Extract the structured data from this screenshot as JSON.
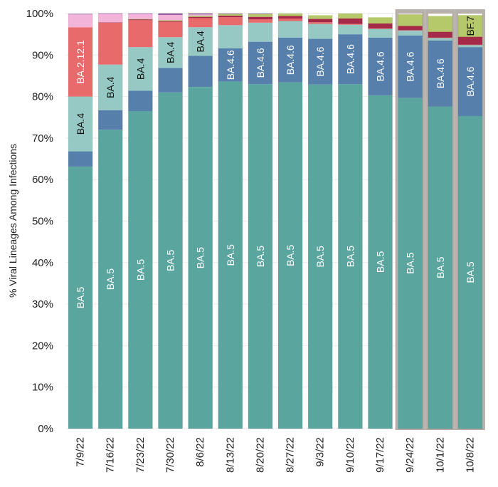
{
  "chart_data": {
    "type": "bar",
    "stacked": true,
    "ylabel": "% Viral Lineages Among Infections",
    "xlabel": "",
    "ylim": [
      0,
      100
    ],
    "ytick_labels": [
      "0%",
      "10%",
      "20%",
      "30%",
      "40%",
      "50%",
      "60%",
      "70%",
      "80%",
      "90%",
      "100%"
    ],
    "categories": [
      "7/9/22",
      "7/16/22",
      "7/23/22",
      "7/30/22",
      "8/6/22",
      "8/13/22",
      "8/20/22",
      "8/27/22",
      "9/3/22",
      "9/10/22",
      "9/17/22",
      "9/24/22",
      "10/1/22",
      "10/8/22"
    ],
    "highlighted_categories": [
      "9/24/22",
      "10/1/22",
      "10/8/22"
    ],
    "highlight_color": "#b7b0ab",
    "grid": true,
    "legend": "none",
    "series": [
      {
        "name": "BA.5",
        "color": "#5ba59f",
        "label_color": "#ffffff",
        "values": [
          63.1,
          72.0,
          76.5,
          81.0,
          82.3,
          83.6,
          83.0,
          83.4,
          82.9,
          83.0,
          80.3,
          79.7,
          77.6,
          75.3
        ]
      },
      {
        "name": "BA.4.6",
        "color": "#567fab",
        "label_color": "#ffffff",
        "values": [
          3.7,
          4.7,
          4.9,
          5.9,
          7.5,
          8.0,
          10.2,
          10.8,
          11.0,
          12.0,
          13.9,
          15.0,
          15.9,
          16.6
        ]
      },
      {
        "name": "BA.4",
        "color": "#96c9c4",
        "label_color": "#111111",
        "values": [
          13.2,
          11.0,
          10.5,
          7.4,
          6.9,
          5.6,
          4.6,
          4.0,
          3.6,
          2.3,
          2.1,
          1.2,
          0.6,
          0.5
        ]
      },
      {
        "name": "BA.2.12.1",
        "color": "#e86a6a",
        "label_color": "#ffffff",
        "values": [
          16.7,
          10.1,
          6.5,
          3.7,
          2.2,
          1.9,
          0.8,
          0.6,
          0.4,
          0.2,
          0.1,
          0.1,
          0.1,
          0.1
        ]
      },
      {
        "name": "",
        "color": "#a52a4a",
        "label_color": "#ffffff",
        "values": [
          0.0,
          0.1,
          0.2,
          0.2,
          0.3,
          0.4,
          0.6,
          0.6,
          0.8,
          1.3,
          1.2,
          1.0,
          1.4,
          1.9
        ]
      },
      {
        "name": "BF.7",
        "color": "#b5c96a",
        "label_color": "#111111",
        "values": [
          0.0,
          0.0,
          0.1,
          0.2,
          0.3,
          0.4,
          0.7,
          0.6,
          0.9,
          1.2,
          1.5,
          2.8,
          3.8,
          5.2
        ]
      },
      {
        "name": "",
        "color": "#f2b4d8",
        "label_color": "#111111",
        "values": [
          3.1,
          2.0,
          1.2,
          1.3,
          0.3,
          0.0,
          0.0,
          0.0,
          0.0,
          0.0,
          0.0,
          0.0,
          0.0,
          0.0
        ]
      },
      {
        "name": "",
        "color": "#7a3a8a",
        "label_color": "#ffffff",
        "values": [
          0.1,
          0.1,
          0.1,
          0.3,
          0.2,
          0.1,
          0.1,
          0.0,
          0.0,
          0.0,
          0.0,
          0.0,
          0.0,
          0.0
        ]
      }
    ],
    "segment_labels": [
      {
        "category": "7/9/22",
        "series": "BA.5",
        "text": "BA.5"
      },
      {
        "category": "7/9/22",
        "series": "BA.4",
        "text": "BA.4"
      },
      {
        "category": "7/9/22",
        "series": "BA.2.12.1",
        "text": "BA.2.12.1"
      },
      {
        "category": "7/16/22",
        "series": "BA.5",
        "text": "BA.5"
      },
      {
        "category": "7/16/22",
        "series": "BA.4",
        "text": "BA.4"
      },
      {
        "category": "7/23/22",
        "series": "BA.5",
        "text": "BA.5"
      },
      {
        "category": "7/23/22",
        "series": "BA.4",
        "text": "BA.4"
      },
      {
        "category": "7/30/22",
        "series": "BA.5",
        "text": "BA.5"
      },
      {
        "category": "7/30/22",
        "series": "BA.4",
        "text": "BA.4"
      },
      {
        "category": "8/6/22",
        "series": "BA.5",
        "text": "BA.5"
      },
      {
        "category": "8/6/22",
        "series": "BA.4",
        "text": "BA.4"
      },
      {
        "category": "8/13/22",
        "series": "BA.5",
        "text": "BA.5"
      },
      {
        "category": "8/13/22",
        "series": "BA.4.6",
        "text": "BA.4.6"
      },
      {
        "category": "8/20/22",
        "series": "BA.5",
        "text": "BA.5"
      },
      {
        "category": "8/20/22",
        "series": "BA.4.6",
        "text": "BA.4.6"
      },
      {
        "category": "8/27/22",
        "series": "BA.5",
        "text": "BA.5"
      },
      {
        "category": "8/27/22",
        "series": "BA.4.6",
        "text": "BA.4.6"
      },
      {
        "category": "9/3/22",
        "series": "BA.5",
        "text": "BA.5"
      },
      {
        "category": "9/3/22",
        "series": "BA.4.6",
        "text": "BA.4.6"
      },
      {
        "category": "9/10/22",
        "series": "BA.5",
        "text": "BA.5"
      },
      {
        "category": "9/10/22",
        "series": "BA.4.6",
        "text": "BA.4.6"
      },
      {
        "category": "9/17/22",
        "series": "BA.5",
        "text": "BA.5"
      },
      {
        "category": "9/17/22",
        "series": "BA.4.6",
        "text": "BA.4.6"
      },
      {
        "category": "9/24/22",
        "series": "BA.5",
        "text": "BA.5"
      },
      {
        "category": "9/24/22",
        "series": "BA.4.6",
        "text": "BA.4.6"
      },
      {
        "category": "10/1/22",
        "series": "BA.5",
        "text": "BA.5"
      },
      {
        "category": "10/1/22",
        "series": "BA.4.6",
        "text": "BA.4.6"
      },
      {
        "category": "10/8/22",
        "series": "BA.5",
        "text": "BA.5"
      },
      {
        "category": "10/8/22",
        "series": "BA.4.6",
        "text": "BA.4.6"
      },
      {
        "category": "10/8/22",
        "series": "BF.7",
        "text": "BF.7"
      }
    ]
  }
}
